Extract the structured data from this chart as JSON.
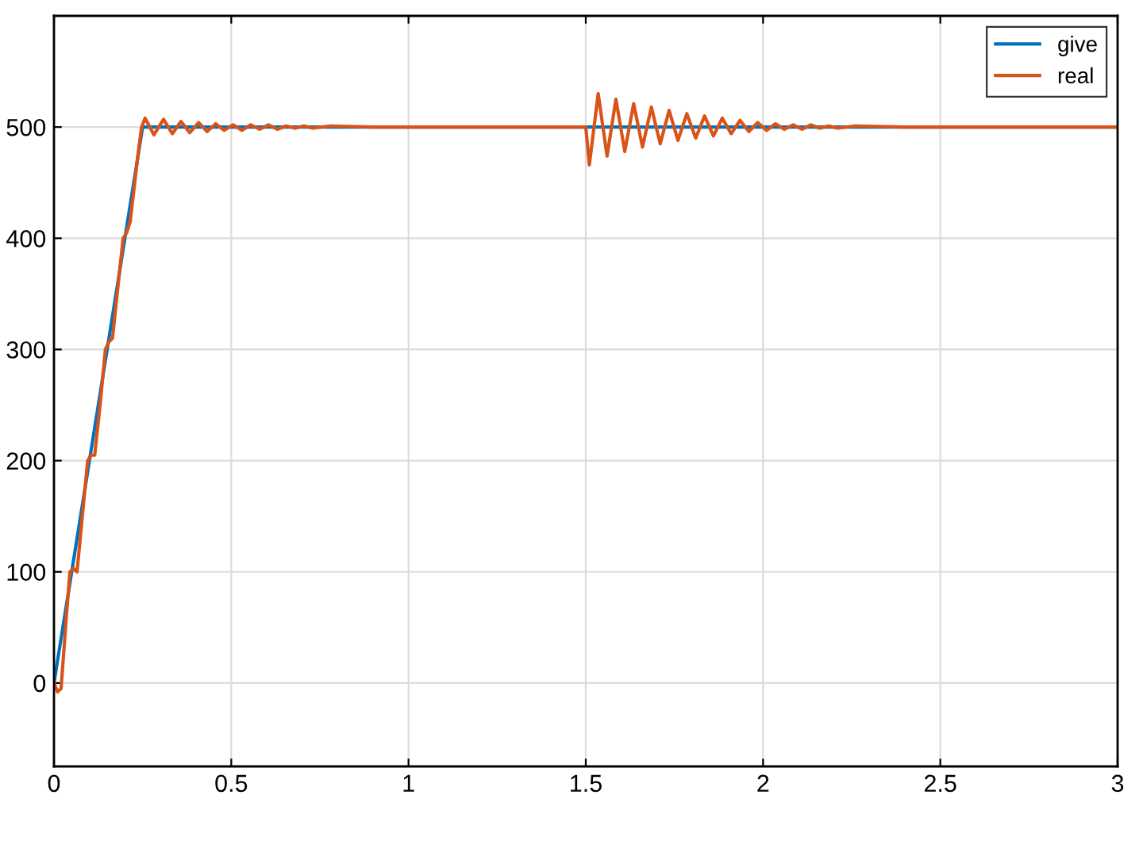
{
  "chart_data": {
    "type": "line",
    "xlim": [
      0,
      3
    ],
    "xticks": [
      0,
      0.5,
      1,
      1.5,
      2,
      2.5,
      3
    ],
    "ylim": [
      -75,
      600
    ],
    "yticks": [
      0,
      100,
      200,
      300,
      400,
      500
    ],
    "grid": true,
    "legend": "top right",
    "marker": "none",
    "line_style": "solid",
    "series": [
      {
        "name": "give",
        "color": "#0072bd",
        "x": [
          0,
          0.25,
          3
        ],
        "values": [
          0,
          500,
          500
        ]
      },
      {
        "name": "real",
        "color": "#d95319",
        "x": [
          0,
          0.01,
          0.02,
          0.035,
          0.045,
          0.055,
          0.065,
          0.08,
          0.095,
          0.105,
          0.115,
          0.13,
          0.145,
          0.155,
          0.165,
          0.18,
          0.195,
          0.205,
          0.215,
          0.235,
          0.247,
          0.257,
          0.282,
          0.309,
          0.334,
          0.358,
          0.383,
          0.408,
          0.432,
          0.456,
          0.48,
          0.505,
          0.53,
          0.555,
          0.58,
          0.605,
          0.63,
          0.655,
          0.68,
          0.705,
          0.73,
          0.78,
          0.9,
          1.5,
          1.51,
          1.535,
          1.56,
          1.585,
          1.61,
          1.635,
          1.66,
          1.685,
          1.71,
          1.735,
          1.76,
          1.785,
          1.81,
          1.835,
          1.86,
          1.885,
          1.91,
          1.935,
          1.96,
          1.985,
          2.01,
          2.035,
          2.06,
          2.085,
          2.11,
          2.135,
          2.16,
          2.185,
          2.21,
          2.26,
          2.4,
          3
        ],
        "values": [
          0,
          -8,
          -5,
          60,
          100,
          103,
          100,
          150,
          200,
          205,
          205,
          250,
          300,
          307,
          310,
          355,
          400,
          405,
          415,
          470,
          500,
          508,
          493,
          507,
          494,
          505,
          495,
          504,
          496,
          503,
          497,
          502,
          497,
          502,
          498,
          502,
          498,
          501,
          499,
          501,
          499,
          501,
          500,
          500,
          466,
          530,
          474,
          525,
          478,
          521,
          482,
          518,
          485,
          515,
          488,
          512,
          490,
          510,
          492,
          508,
          494,
          506,
          496,
          504,
          497,
          503,
          498,
          502,
          498,
          502,
          499,
          501,
          499,
          501,
          500,
          500
        ]
      }
    ]
  }
}
